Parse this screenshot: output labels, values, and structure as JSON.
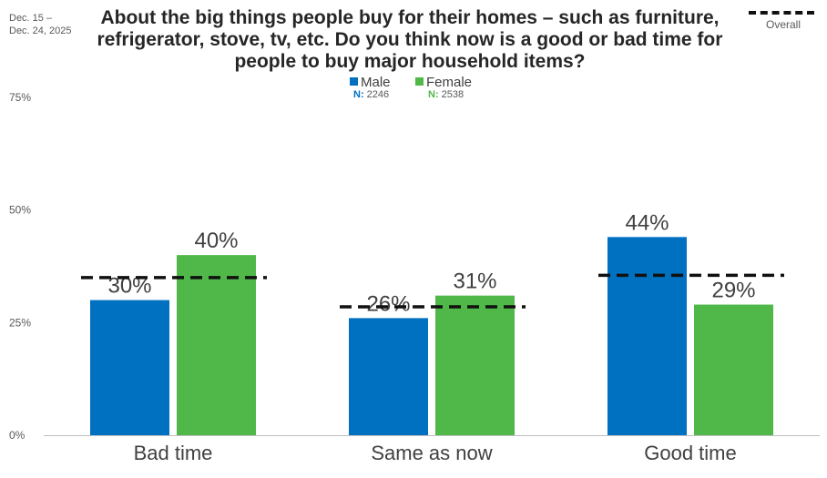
{
  "date_range": [
    "Dec. 15 –",
    "Dec. 24, 2025"
  ],
  "title": "About the big things people buy for their homes – such as furniture, refrigerator, stove, tv, etc. Do you think now is a good or bad time for people to buy major household items?",
  "legend": {
    "male": {
      "label": "Male",
      "n_prefix": "N:",
      "n_value": "2246"
    },
    "female": {
      "label": "Female",
      "n_prefix": "N:",
      "n_value": "2538"
    },
    "overall": {
      "label": "Overall"
    }
  },
  "colors": {
    "male": "#0070C0",
    "female": "#50B848",
    "overall": "#111111",
    "axis": "#BFBFBF"
  },
  "chart_data": {
    "type": "bar",
    "categories": [
      "Bad time",
      "Same as now",
      "Good time"
    ],
    "series": [
      {
        "name": "Male",
        "values": [
          30,
          26,
          44
        ]
      },
      {
        "name": "Female",
        "values": [
          40,
          31,
          29
        ]
      }
    ],
    "overall": {
      "name": "Overall",
      "values": [
        35,
        28.5,
        35.5
      ]
    },
    "data_labels": {
      "Male": [
        "30%",
        "26%",
        "44%"
      ],
      "Female": [
        "40%",
        "31%",
        "29%"
      ]
    },
    "yticks": [
      0,
      25,
      50,
      75
    ],
    "ytick_labels": [
      "0%",
      "25%",
      "50%",
      "75%"
    ],
    "ylim": [
      0,
      75
    ],
    "grid": false,
    "legend_position": "top-center"
  }
}
